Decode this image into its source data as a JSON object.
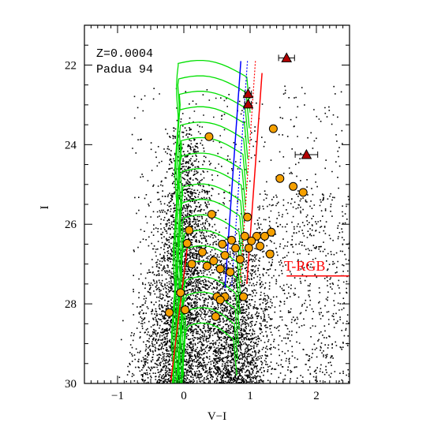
{
  "chart_data": {
    "type": "scatter",
    "xlabel": "V−I",
    "ylabel": "I",
    "xlim": [
      -1.5,
      2.5
    ],
    "ylim": [
      30,
      21
    ],
    "y_inverted": true,
    "x_ticks": [
      -1,
      0,
      1,
      2
    ],
    "x_tick_labels": [
      "−1",
      "0",
      "1",
      "2"
    ],
    "y_ticks": [
      22,
      24,
      26,
      28,
      30
    ],
    "y_tick_labels": [
      "22",
      "24",
      "26",
      "28",
      "30"
    ],
    "annotations": {
      "metallicity": "Z=0.0004",
      "model": "Padua 94",
      "trgb_label": "T-RGB"
    },
    "trgb_magnitude": 27.3,
    "colors": {
      "field_stars": "#000000",
      "isochrones": "#00e000",
      "blue_line": "#0000ff",
      "red_lines": "#ff0000",
      "variable_fill": "#f5a000",
      "triangle_fill": "#b30000"
    },
    "variable_stars": [
      {
        "vi": 0.38,
        "i": 23.8
      },
      {
        "vi": 1.35,
        "i": 23.6
      },
      {
        "vi": 1.45,
        "i": 24.85
      },
      {
        "vi": 1.65,
        "i": 25.05
      },
      {
        "vi": 1.8,
        "i": 25.2
      },
      {
        "vi": 0.42,
        "i": 25.75
      },
      {
        "vi": 0.96,
        "i": 25.82
      },
      {
        "vi": 0.08,
        "i": 26.15
      },
      {
        "vi": 1.32,
        "i": 26.2
      },
      {
        "vi": 0.92,
        "i": 26.3
      },
      {
        "vi": 1.1,
        "i": 26.3
      },
      {
        "vi": 1.22,
        "i": 26.3
      },
      {
        "vi": 0.72,
        "i": 26.4
      },
      {
        "vi": 1.02,
        "i": 26.42
      },
      {
        "vi": 0.05,
        "i": 26.48
      },
      {
        "vi": 0.58,
        "i": 26.5
      },
      {
        "vi": 0.78,
        "i": 26.6
      },
      {
        "vi": 1.15,
        "i": 26.55
      },
      {
        "vi": 0.98,
        "i": 26.6
      },
      {
        "vi": 0.28,
        "i": 26.7
      },
      {
        "vi": 0.62,
        "i": 26.78
      },
      {
        "vi": 1.3,
        "i": 26.75
      },
      {
        "vi": 0.45,
        "i": 26.92
      },
      {
        "vi": 0.85,
        "i": 26.88
      },
      {
        "vi": 0.12,
        "i": 27.0
      },
      {
        "vi": 0.35,
        "i": 27.05
      },
      {
        "vi": 0.55,
        "i": 27.12
      },
      {
        "vi": 0.7,
        "i": 27.2
      },
      {
        "vi": -0.05,
        "i": 27.72
      },
      {
        "vi": 0.5,
        "i": 27.82
      },
      {
        "vi": 0.62,
        "i": 27.82
      },
      {
        "vi": 0.55,
        "i": 27.9
      },
      {
        "vi": 0.9,
        "i": 27.82
      },
      {
        "vi": 0.02,
        "i": 28.15
      },
      {
        "vi": -0.22,
        "i": 28.22
      },
      {
        "vi": 0.48,
        "i": 28.32
      }
    ],
    "triangle_stars": [
      {
        "vi": 1.55,
        "i": 21.82,
        "err": 0.12
      },
      {
        "vi": 0.97,
        "i": 22.72,
        "err": 0.05
      },
      {
        "vi": 0.97,
        "i": 22.98,
        "err": 0.05
      },
      {
        "vi": 1.85,
        "i": 24.25,
        "err": 0.17
      }
    ],
    "isochrone_count": 18,
    "field_star_count": 6500
  }
}
